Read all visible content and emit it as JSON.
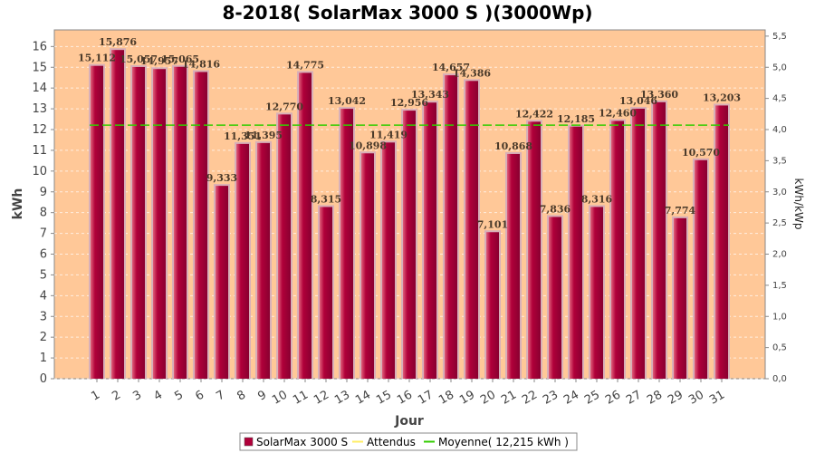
{
  "chart_data": {
    "type": "bar",
    "title": "8-2018( SolarMax 3000 S )(3000Wp)",
    "xlabel": "Jour",
    "ylabel": "kWh",
    "y2label": "kWh/kWp",
    "ylim": [
      0,
      16.8
    ],
    "y2lim": [
      0,
      5.6
    ],
    "yticks": [
      0,
      1,
      2,
      3,
      4,
      5,
      6,
      7,
      8,
      9,
      10,
      11,
      12,
      13,
      14,
      15,
      16
    ],
    "y2ticks": [
      "0,0",
      "0,5",
      "1,0",
      "1,5",
      "2,0",
      "2,5",
      "3,0",
      "3,5",
      "4,0",
      "4,5",
      "5,0",
      "5,5"
    ],
    "categories": [
      "1",
      "2",
      "3",
      "4",
      "5",
      "6",
      "7",
      "8",
      "9",
      "10",
      "11",
      "12",
      "13",
      "14",
      "15",
      "16",
      "17",
      "18",
      "19",
      "20",
      "21",
      "22",
      "23",
      "24",
      "25",
      "26",
      "27",
      "28",
      "29",
      "30",
      "31"
    ],
    "series": [
      {
        "name": "SolarMax 3000 S",
        "color": "#b0003a",
        "values": [
          15.112,
          15.876,
          15.057,
          14.957,
          15.065,
          14.816,
          9.333,
          11.351,
          11.395,
          12.77,
          14.775,
          8.315,
          13.042,
          10.898,
          11.419,
          12.956,
          13.343,
          14.657,
          14.386,
          7.101,
          10.868,
          12.422,
          7.836,
          12.185,
          8.316,
          12.46,
          13.046,
          13.36,
          7.774,
          10.57,
          13.203
        ],
        "labels": [
          "15,112",
          "15,876",
          "15,057",
          "14,957",
          "15,065",
          "14,816",
          "9,333",
          "11,351",
          "11,395",
          "12,770",
          "14,775",
          "8,315",
          "13,042",
          "10,898",
          "11,419",
          "12,956",
          "13,343",
          "14,657",
          "14,386",
          "7,101",
          "10,868",
          "12,422",
          "7,836",
          "12,185",
          "8,316",
          "12,460",
          "13,046",
          "13,360",
          "7,774",
          "10,570",
          "13,203"
        ]
      }
    ],
    "average": {
      "name": "Moyenne( 12,215 kWh )",
      "value": 12.215,
      "color": "#33cc00"
    },
    "expected": {
      "name": "Attendus",
      "color": "#ffee66"
    },
    "grid": true,
    "legend_position": "bottom-center",
    "colors": {
      "plot_bg": "#ffc898",
      "bar": "#b0003a",
      "bar_highlight": "#e0607a",
      "bar_edge": "#d8b0b8"
    }
  }
}
